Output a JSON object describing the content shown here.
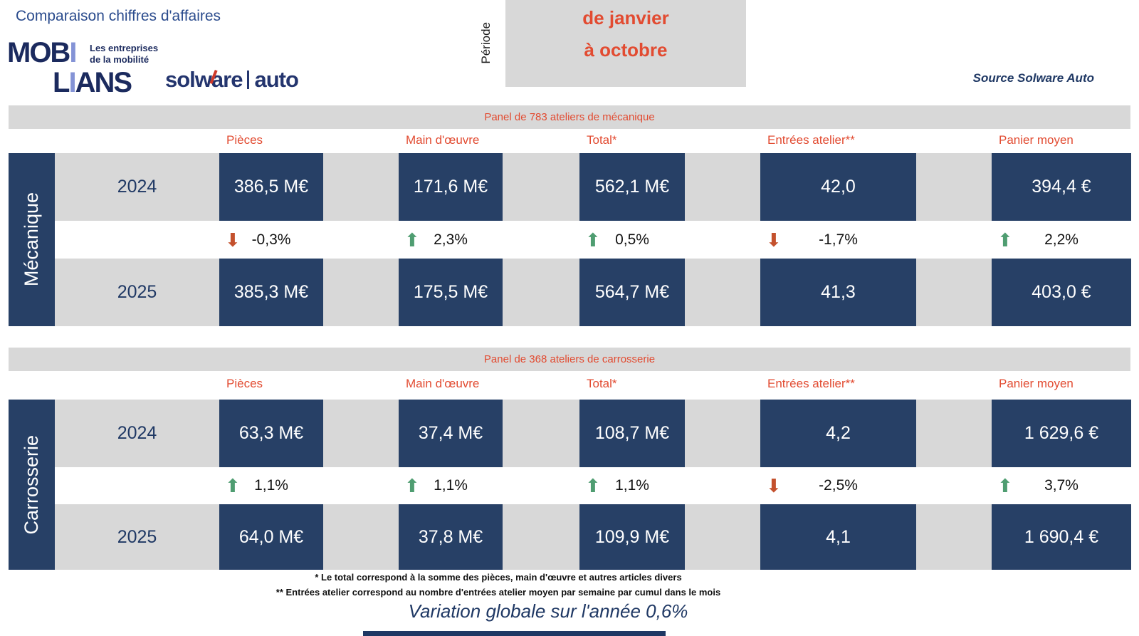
{
  "colors": {
    "navy_cell": "#274066",
    "navy_text": "#1f3864",
    "gray_band": "#d8d8d8",
    "red_accent": "#e24b31",
    "arrow_up_green": "#4f9d71",
    "arrow_down_red": "#c4512d"
  },
  "header": {
    "title": "Comparaison chiffres d'affaires",
    "mobilians": {
      "mob": "MOB",
      "i1": "I",
      "l": "L",
      "i2": "I",
      "ans": "ANS",
      "tag1": "Les entreprises",
      "tag2": "de la mobilité"
    },
    "solware": {
      "name": "solware",
      "suffix": "auto"
    },
    "periode": {
      "label": "Période",
      "line1": "de janvier",
      "line2": "à octobre"
    },
    "source": "Source Solware Auto"
  },
  "table": {
    "columns": [
      "Pièces",
      "Main d'œuvre",
      "Total*",
      "Entrées atelier**",
      "Panier moyen"
    ],
    "sections": [
      {
        "panel": "Panel de 783 ateliers de mécanique",
        "label": "Mécanique",
        "y2024": {
          "year": "2024",
          "values": [
            "386,5 M€",
            "171,6 M€",
            "562,1 M€",
            "42,0",
            "394,4 €"
          ]
        },
        "changes": [
          {
            "arrow": "⬇",
            "pct": "-0,3%",
            "style": "color:#c4512d"
          },
          {
            "arrow": "⬆",
            "pct": "2,3%",
            "style": "color:#4f9d71"
          },
          {
            "arrow": "⬆",
            "pct": "0,5%",
            "style": "color:#4f9d71"
          },
          {
            "arrow": "⬇",
            "pct": "-1,7%",
            "style": "color:#c4512d"
          },
          {
            "arrow": "⬆",
            "pct": "2,2%",
            "style": "color:#4f9d71"
          }
        ],
        "y2025": {
          "year": "2025",
          "values": [
            "385,3 M€",
            "175,5 M€",
            "564,7 M€",
            "41,3",
            "403,0 €"
          ]
        }
      },
      {
        "panel": "Panel de 368 ateliers de carrosserie",
        "label": "Carrosserie",
        "y2024": {
          "year": "2024",
          "values": [
            "63,3 M€",
            "37,4 M€",
            "108,7 M€",
            "4,2",
            "1 629,6 €"
          ]
        },
        "changes": [
          {
            "arrow": "⬆",
            "pct": "1,1%",
            "style": "color:#4f9d71"
          },
          {
            "arrow": "⬆",
            "pct": "1,1%",
            "style": "color:#4f9d71"
          },
          {
            "arrow": "⬆",
            "pct": "1,1%",
            "style": "color:#4f9d71"
          },
          {
            "arrow": "⬇",
            "pct": "-2,5%",
            "style": "color:#c4512d"
          },
          {
            "arrow": "⬆",
            "pct": "3,7%",
            "style": "color:#4f9d71"
          }
        ],
        "y2025": {
          "year": "2025",
          "values": [
            "64,0 M€",
            "37,8 M€",
            "109,9 M€",
            "4,1",
            "1 690,4 €"
          ]
        }
      }
    ]
  },
  "footnotes": {
    "line1": "* Le total correspond à la somme des pièces, main d'œuvre et autres articles divers",
    "line2": "** Entrées atelier correspond au nombre d'entrées atelier moyen par semaine par cumul dans le mois"
  },
  "summary": "Variation globale sur l'année 0,6%"
}
